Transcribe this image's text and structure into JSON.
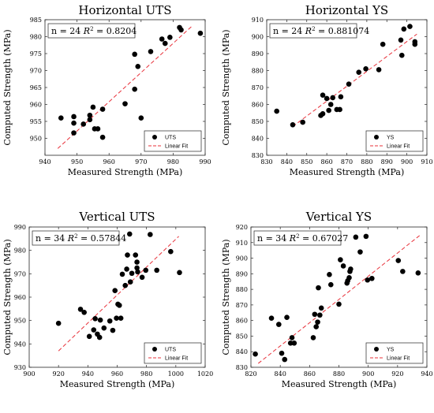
{
  "chart_data": [
    {
      "type": "scatter",
      "title": "Horizontal UTS",
      "xlabel": "Measured Strength (MPa)",
      "ylabel": "Computed Strength (MPa)",
      "xlim": [
        940,
        990
      ],
      "ylim": [
        945,
        985
      ],
      "xticks": [
        940,
        950,
        960,
        970,
        980,
        990
      ],
      "yticks": [
        950,
        955,
        960,
        965,
        970,
        975,
        980,
        985
      ],
      "annotation": {
        "n_text": "n = 24",
        "r2_label": "R",
        "r2_sup": "2",
        "r2_value": "= 0.8204"
      },
      "legend": {
        "placement": "bottom-right",
        "points_label": "UTS",
        "fit_label": "Linear Fit"
      },
      "fit": {
        "x": [
          944,
          986
        ],
        "y": [
          947.0,
          983.2
        ]
      },
      "points": [
        {
          "x": 945.0,
          "y": 956.0
        },
        {
          "x": 949.0,
          "y": 954.5
        },
        {
          "x": 949.0,
          "y": 956.4
        },
        {
          "x": 949.0,
          "y": 951.6
        },
        {
          "x": 952.0,
          "y": 954.2
        },
        {
          "x": 954.0,
          "y": 956.8
        },
        {
          "x": 954.0,
          "y": 955.5
        },
        {
          "x": 955.0,
          "y": 959.2
        },
        {
          "x": 955.5,
          "y": 952.8
        },
        {
          "x": 956.5,
          "y": 952.8
        },
        {
          "x": 958.0,
          "y": 958.6
        },
        {
          "x": 958.0,
          "y": 950.3
        },
        {
          "x": 965.0,
          "y": 960.2
        },
        {
          "x": 968.0,
          "y": 964.5
        },
        {
          "x": 968.0,
          "y": 974.8
        },
        {
          "x": 969.0,
          "y": 971.2
        },
        {
          "x": 970.0,
          "y": 956.0
        },
        {
          "x": 973.0,
          "y": 975.6
        },
        {
          "x": 976.5,
          "y": 979.3
        },
        {
          "x": 977.5,
          "y": 978.0
        },
        {
          "x": 979.0,
          "y": 979.8
        },
        {
          "x": 982.0,
          "y": 982.7
        },
        {
          "x": 982.5,
          "y": 982.0
        },
        {
          "x": 988.5,
          "y": 981.0
        }
      ]
    },
    {
      "type": "scatter",
      "title": "Horizontal YS",
      "xlabel": "Measured Strength (MPa)",
      "ylabel": "Computed Strength (MPa)",
      "xlim": [
        830,
        910
      ],
      "ylim": [
        830,
        910
      ],
      "xticks": [
        830,
        840,
        850,
        860,
        870,
        880,
        890,
        900,
        910
      ],
      "yticks": [
        830,
        840,
        850,
        860,
        870,
        880,
        890,
        900,
        910
      ],
      "annotation": {
        "n_text": "n = 24",
        "r2_label": "R",
        "r2_sup": "2",
        "r2_value": "= 0.881074"
      },
      "legend": {
        "placement": "bottom-right",
        "points_label": "YS",
        "fit_label": "Linear Fit"
      },
      "fit": {
        "x": [
          843,
          905
        ],
        "y": [
          847.0,
          901.5
        ]
      },
      "points": [
        {
          "x": 835.0,
          "y": 856.0
        },
        {
          "x": 843.0,
          "y": 848.0
        },
        {
          "x": 848.0,
          "y": 849.5
        },
        {
          "x": 857.0,
          "y": 853.5
        },
        {
          "x": 858.0,
          "y": 854.5
        },
        {
          "x": 858.0,
          "y": 865.5
        },
        {
          "x": 860.0,
          "y": 863.5
        },
        {
          "x": 861.0,
          "y": 856.5
        },
        {
          "x": 862.0,
          "y": 860.0
        },
        {
          "x": 863.0,
          "y": 864.0
        },
        {
          "x": 865.0,
          "y": 857.0
        },
        {
          "x": 866.5,
          "y": 857.0
        },
        {
          "x": 867.0,
          "y": 864.5
        },
        {
          "x": 871.0,
          "y": 872.0
        },
        {
          "x": 876.0,
          "y": 879.0
        },
        {
          "x": 879.5,
          "y": 881.0
        },
        {
          "x": 886.0,
          "y": 880.5
        },
        {
          "x": 888.0,
          "y": 895.5
        },
        {
          "x": 897.0,
          "y": 898.0
        },
        {
          "x": 897.5,
          "y": 889.0
        },
        {
          "x": 898.5,
          "y": 904.5
        },
        {
          "x": 901.5,
          "y": 906.0
        },
        {
          "x": 904.0,
          "y": 895.5
        },
        {
          "x": 904.0,
          "y": 897.0
        }
      ]
    },
    {
      "type": "scatter",
      "title": "Vertical UTS",
      "xlabel": "Measured Strength (MPa)",
      "ylabel": "Computed Strength (MPa)",
      "xlim": [
        900,
        1020
      ],
      "ylim": [
        930,
        990
      ],
      "xticks": [
        900,
        920,
        940,
        960,
        980,
        1000,
        1020
      ],
      "yticks": [
        930,
        940,
        950,
        960,
        970,
        980,
        990
      ],
      "annotation": {
        "n_text": "n = 34",
        "r2_label": "R",
        "r2_sup": "2",
        "r2_value": "= 0.57844"
      },
      "legend": {
        "placement": "bottom-right",
        "points_label": "UTS",
        "fit_label": "Linear Fit"
      },
      "fit": {
        "x": [
          920,
          1002
        ],
        "y": [
          937.0,
          986.0
        ]
      },
      "points": [
        {
          "x": 920.0,
          "y": 948.8
        },
        {
          "x": 935.0,
          "y": 954.8
        },
        {
          "x": 937.5,
          "y": 953.5
        },
        {
          "x": 941.0,
          "y": 943.2
        },
        {
          "x": 944.0,
          "y": 946.0
        },
        {
          "x": 945.0,
          "y": 950.8
        },
        {
          "x": 946.5,
          "y": 944.2
        },
        {
          "x": 948.0,
          "y": 942.8
        },
        {
          "x": 948.5,
          "y": 950.2
        },
        {
          "x": 951.0,
          "y": 946.8
        },
        {
          "x": 955.0,
          "y": 949.8
        },
        {
          "x": 957.0,
          "y": 945.8
        },
        {
          "x": 958.5,
          "y": 962.8
        },
        {
          "x": 959.5,
          "y": 951.0
        },
        {
          "x": 960.5,
          "y": 957.0
        },
        {
          "x": 961.5,
          "y": 956.5
        },
        {
          "x": 962.5,
          "y": 951.0
        },
        {
          "x": 963.5,
          "y": 969.8
        },
        {
          "x": 965.5,
          "y": 965.0
        },
        {
          "x": 966.5,
          "y": 972.0
        },
        {
          "x": 967.0,
          "y": 978.0
        },
        {
          "x": 968.5,
          "y": 987.0
        },
        {
          "x": 969.0,
          "y": 966.5
        },
        {
          "x": 970.0,
          "y": 970.2
        },
        {
          "x": 972.5,
          "y": 978.0
        },
        {
          "x": 973.5,
          "y": 972.5
        },
        {
          "x": 973.5,
          "y": 975.0
        },
        {
          "x": 974.0,
          "y": 970.8
        },
        {
          "x": 977.0,
          "y": 968.5
        },
        {
          "x": 979.5,
          "y": 971.5
        },
        {
          "x": 982.5,
          "y": 986.8
        },
        {
          "x": 987.0,
          "y": 971.5
        },
        {
          "x": 996.5,
          "y": 979.5
        },
        {
          "x": 1002.5,
          "y": 970.5
        }
      ]
    },
    {
      "type": "scatter",
      "title": "Vertical YS",
      "xlabel": "Measured Strength (MPa)",
      "ylabel": "Computed Strength (MPa)",
      "xlim": [
        820,
        940
      ],
      "ylim": [
        830,
        920
      ],
      "xticks": [
        820,
        840,
        860,
        880,
        900,
        920,
        940
      ],
      "yticks": [
        830,
        840,
        850,
        860,
        870,
        880,
        890,
        900,
        910,
        920
      ],
      "annotation": {
        "n_text": "n = 34",
        "r2_label": "R",
        "r2_sup": "2",
        "r2_value": "= 0.67027"
      },
      "legend": {
        "placement": "bottom-right",
        "points_label": "YS",
        "fit_label": "Linear Fit"
      },
      "fit": {
        "x": [
          825,
          935
        ],
        "y": [
          832.5,
          914.5
        ]
      },
      "points": [
        {
          "x": 823.0,
          "y": 838.5
        },
        {
          "x": 834.0,
          "y": 861.5
        },
        {
          "x": 839.0,
          "y": 857.5
        },
        {
          "x": 841.0,
          "y": 839.0
        },
        {
          "x": 843.0,
          "y": 835.0
        },
        {
          "x": 844.5,
          "y": 862.0
        },
        {
          "x": 847.0,
          "y": 845.5
        },
        {
          "x": 848.0,
          "y": 849.0
        },
        {
          "x": 849.5,
          "y": 845.5
        },
        {
          "x": 862.5,
          "y": 849.0
        },
        {
          "x": 863.5,
          "y": 864.0
        },
        {
          "x": 864.5,
          "y": 856.0
        },
        {
          "x": 865.5,
          "y": 859.0
        },
        {
          "x": 866.0,
          "y": 881.0
        },
        {
          "x": 867.0,
          "y": 863.5
        },
        {
          "x": 868.0,
          "y": 868.0
        },
        {
          "x": 873.5,
          "y": 889.5
        },
        {
          "x": 874.5,
          "y": 883.0
        },
        {
          "x": 880.0,
          "y": 870.5
        },
        {
          "x": 881.0,
          "y": 899.0
        },
        {
          "x": 883.0,
          "y": 895.0
        },
        {
          "x": 885.5,
          "y": 884.0
        },
        {
          "x": 886.0,
          "y": 885.5
        },
        {
          "x": 887.0,
          "y": 887.5
        },
        {
          "x": 887.5,
          "y": 891.5
        },
        {
          "x": 888.0,
          "y": 893.0
        },
        {
          "x": 891.5,
          "y": 913.5
        },
        {
          "x": 894.5,
          "y": 904.0
        },
        {
          "x": 898.5,
          "y": 914.0
        },
        {
          "x": 899.5,
          "y": 886.0
        },
        {
          "x": 902.5,
          "y": 887.0
        },
        {
          "x": 920.5,
          "y": 898.5
        },
        {
          "x": 923.5,
          "y": 891.5
        },
        {
          "x": 934.0,
          "y": 890.5
        }
      ]
    }
  ]
}
